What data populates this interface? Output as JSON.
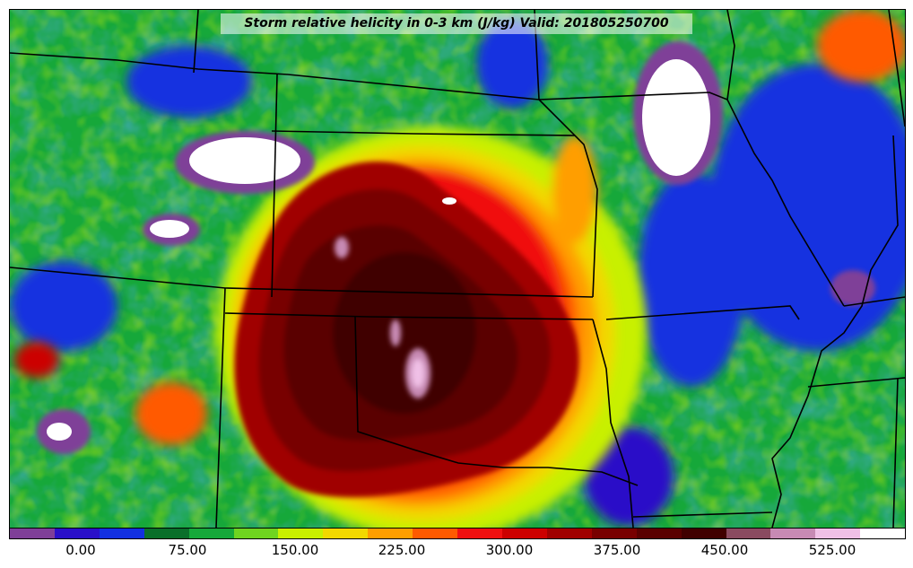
{
  "title": "Storm relative helicity in 0-3 km (J/kg) Valid: 201805250700",
  "colorbar": {
    "colors": [
      "#7f3f98",
      "#2a10c8",
      "#1330e0",
      "#0a6f2a",
      "#16a83a",
      "#6fd420",
      "#c8f000",
      "#f2d800",
      "#ff9e00",
      "#ff5a00",
      "#f01010",
      "#cc0000",
      "#a00000",
      "#780000",
      "#5a0000",
      "#400000",
      "#8a4a60",
      "#c78ab4",
      "#f0c0e6",
      "#ffffff"
    ],
    "tick_labels": [
      "0.00",
      "75.00",
      "150.00",
      "225.00",
      "300.00",
      "375.00",
      "450.00",
      "525.00"
    ]
  }
}
